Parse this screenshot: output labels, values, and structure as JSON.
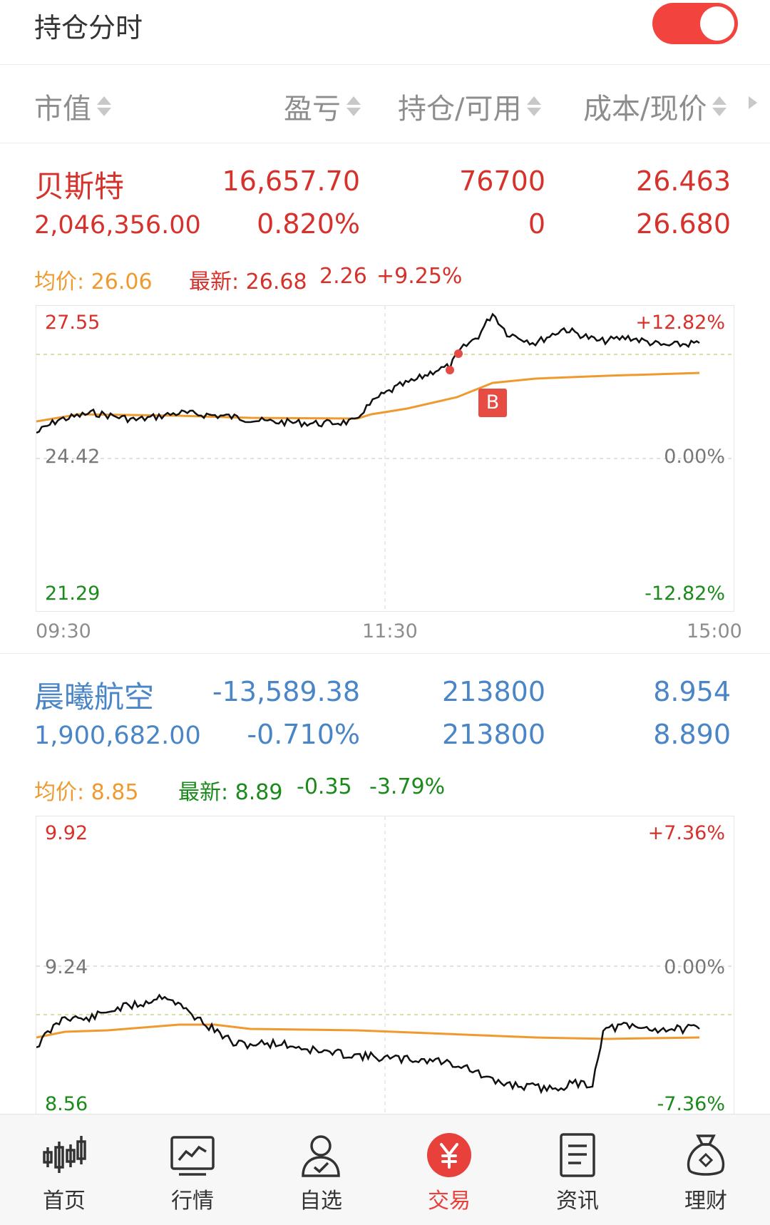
{
  "header": {
    "title": "持仓分时",
    "toggle_on": true,
    "toggle_color": "#f2433f"
  },
  "columns": {
    "market_value": "市值",
    "pnl": "盈亏",
    "position_available": "持仓/可用",
    "cost_price": "成本/现价"
  },
  "stocks": [
    {
      "name": "贝斯特",
      "market_value": "2,046,356.00",
      "pnl": "16,657.70",
      "pnl_pct": "0.820%",
      "position": "76700",
      "available": "0",
      "cost": "26.463",
      "price": "26.680",
      "avg_label": "均价: 26.06",
      "latest_label": "最新: 26.68",
      "change": "2.26",
      "change_pct": "+9.25%",
      "axis": {
        "high": "27.55",
        "mid": "24.42",
        "low": "21.29",
        "high_pct": "+12.82%",
        "mid_pct": "0.00%",
        "low_pct": "-12.82%"
      },
      "times": [
        "09:30",
        "11:30",
        "15:00"
      ],
      "buy_marker": "B",
      "color": "#d7312c"
    },
    {
      "name": "晨曦航空",
      "market_value": "1,900,682.00",
      "pnl": "-13,589.38",
      "pnl_pct": "-0.710%",
      "position": "213800",
      "available": "213800",
      "cost": "8.954",
      "price": "8.890",
      "avg_label": "均价: 8.85",
      "latest_label": "最新: 8.89",
      "change": "-0.35",
      "change_pct": "-3.79%",
      "axis": {
        "high": "9.92",
        "mid": "9.24",
        "low": "8.56",
        "high_pct": "+7.36%",
        "mid_pct": "0.00%",
        "low_pct": "-7.36%"
      },
      "color": "#4a86c7"
    }
  ],
  "nav": [
    {
      "label": "首页",
      "icon": "candlestick-icon"
    },
    {
      "label": "行情",
      "icon": "line-chart-icon"
    },
    {
      "label": "自选",
      "icon": "user-check-icon"
    },
    {
      "label": "交易",
      "icon": "yuan-icon",
      "active": true
    },
    {
      "label": "资讯",
      "icon": "document-icon"
    },
    {
      "label": "理财",
      "icon": "money-bag-icon"
    }
  ],
  "colors": {
    "up": "#d7312c",
    "down": "#1a8a1a",
    "avg_line": "#ef9a2f",
    "price_line": "#111111",
    "active_nav": "#e8403a"
  }
}
